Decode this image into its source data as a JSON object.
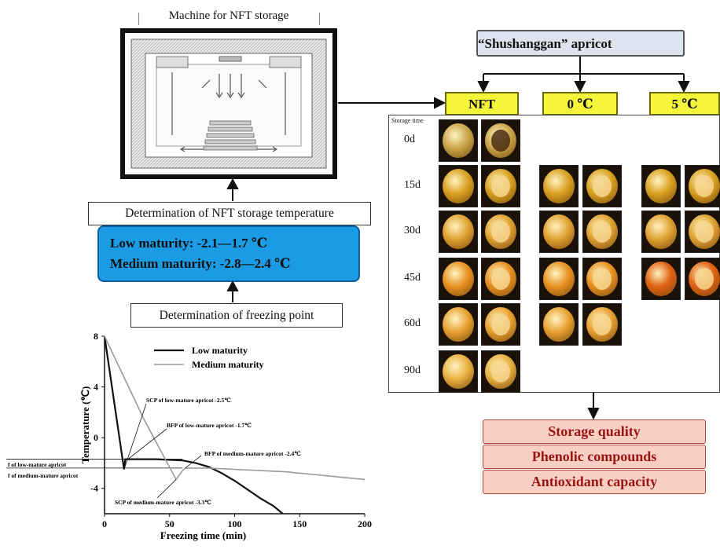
{
  "machine": {
    "label": "Machine for NFT storage"
  },
  "det_nft": "Determination of NFT storage temperature",
  "maturity": {
    "low": "Low maturity: -2.1—1.7 ℃",
    "medium": "Medium maturity: -2.8—2.4 ℃"
  },
  "det_fp": "Determination of freezing point",
  "apricot": "“Shushanggan” apricot",
  "groups": [
    {
      "label": "NFT"
    },
    {
      "label": "0 ℃"
    },
    {
      "label": "5 ℃"
    }
  ],
  "panel": {
    "storage_time": "Storage time",
    "days": [
      "0d",
      "15d",
      "30d",
      "45d",
      "60d",
      "90d"
    ]
  },
  "outcomes": [
    "Storage quality",
    "Phenolic compounds",
    "Antioxidant capacity"
  ],
  "colors": {
    "blue_box": "#1a9be4",
    "yellow": "#f5f53a",
    "pink": "#f9cfc4",
    "pink_text": "#9a1414",
    "apricot_box": "#dde4f0"
  },
  "chart_data": {
    "type": "line",
    "xlabel": "Freezing time (min)",
    "ylabel": "Temperature (℃)",
    "xlim": [
      0,
      200
    ],
    "ylim": [
      -6,
      8
    ],
    "x_ticks": [
      "0",
      "50",
      "100",
      "150",
      "200"
    ],
    "y_ticks": [
      "8",
      "4",
      "0",
      "-4"
    ],
    "series": [
      {
        "name": "Low maturity",
        "color": "#111111",
        "x": [
          0,
          15,
          16,
          20,
          40,
          60,
          70,
          80,
          90,
          100,
          110,
          120,
          130,
          137
        ],
        "y": [
          8,
          -2.5,
          -1.7,
          -1.7,
          -1.7,
          -1.8,
          -2.0,
          -2.3,
          -2.8,
          -3.4,
          -4.1,
          -4.8,
          -5.4,
          -6
        ]
      },
      {
        "name": "Medium maturity",
        "color": "#9a9a9a",
        "x": [
          0,
          30,
          55,
          60,
          62,
          70,
          80,
          100,
          120,
          140,
          160,
          180,
          200
        ],
        "y": [
          8,
          1.5,
          -3.3,
          -2.6,
          -2.4,
          -2.4,
          -2.4,
          -2.5,
          -2.6,
          -2.7,
          -2.9,
          -3.1,
          -3.3
        ]
      }
    ],
    "annotations": [
      "SCP of low-mature apricot -2.5℃",
      "BFP of low-mature apricot -1.7℃",
      "BFP of medium-mature apricot -2.4℃",
      "SCP of medium-mature apricot -3.3℃",
      "f of low-mature apricot",
      "f of medium-mature apricot"
    ]
  }
}
